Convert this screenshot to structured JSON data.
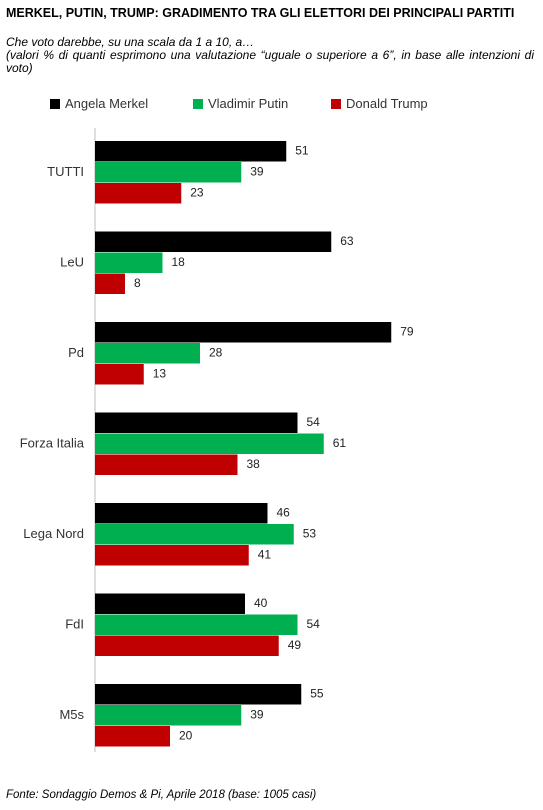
{
  "chart_data": {
    "type": "barh",
    "title": "MERKEL, PUTIN, TRUMP: GRADIMENTO TRA GLI ELETTORI DEI PRINCIPALI PARTITI",
    "subtitle": "Che voto darebbe, su una scala da 1 a 10, a…",
    "note": "(valori % di quanti esprimono una valutazione “uguale o superiore a 6”, in base alle intenzioni di voto)",
    "source": "Fonte: Sondaggio Demos & Pi, Aprile 2018 (base: 1005 casi)",
    "categories": [
      "TUTTI",
      "LeU",
      "Pd",
      "Forza Italia",
      "Lega Nord",
      "FdI",
      "M5s"
    ],
    "series": [
      {
        "name": "Angela Merkel",
        "color": "#000000",
        "values": [
          51,
          63,
          79,
          54,
          46,
          40,
          55
        ]
      },
      {
        "name": "Vladimir Putin",
        "color": "#00b050",
        "values": [
          39,
          18,
          28,
          61,
          53,
          54,
          39
        ]
      },
      {
        "name": "Donald Trump",
        "color": "#c00000",
        "values": [
          23,
          8,
          13,
          38,
          41,
          49,
          20
        ]
      }
    ],
    "legend": "top"
  }
}
